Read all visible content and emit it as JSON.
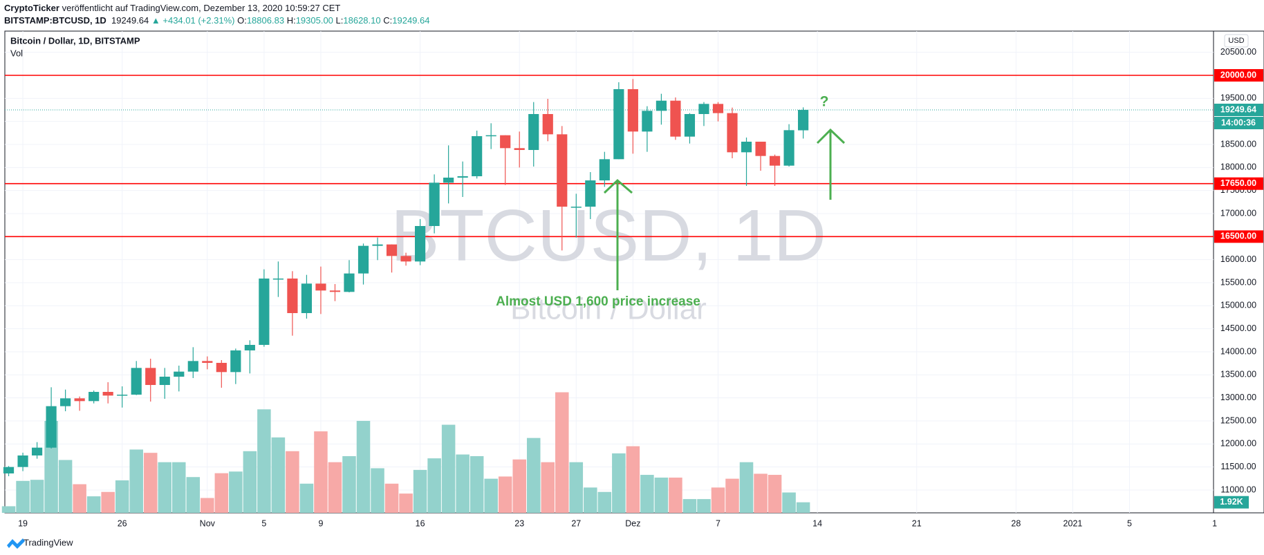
{
  "chart_data": {
    "type": "candlestick",
    "header": {
      "author": "CryptoTicker",
      "published": "veröffentlicht auf TradingView.com, Dezember 13, 2020 10:59:27 CET",
      "symbol": "BITSTAMP:BTCUSD, 1D",
      "last": "19249.64",
      "change": "▲ +434.01 (+2.31%)",
      "ohlc": [
        {
          "label": "O:",
          "value": "18806.83"
        },
        {
          "label": "H:",
          "value": "19305.00"
        },
        {
          "label": "L:",
          "value": "18628.10"
        },
        {
          "label": "C:",
          "value": "19249.64"
        }
      ]
    },
    "title": "Bitcoin / Dollar, 1D, BITSTAMP",
    "volume_title": "Vol",
    "watermark": "BTCUSD, 1D",
    "watermark_subtitle": "Bitcoin / Dollar",
    "annotation": "Almost USD 1,600 price increase",
    "annotation2": "?",
    "currency": "USD",
    "brand": "TradingView",
    "x": [
      0,
      1,
      2,
      3,
      4,
      5,
      6,
      7,
      8,
      9,
      10,
      11,
      12,
      13,
      14,
      15,
      16,
      17,
      18,
      19,
      20,
      21,
      22,
      23,
      24,
      25,
      26,
      27,
      28,
      29,
      30,
      31,
      32,
      33,
      34,
      35,
      36,
      37,
      38,
      39,
      40,
      41,
      42,
      43,
      44,
      45,
      46,
      47,
      48,
      49,
      50,
      51,
      52,
      53,
      54,
      55,
      56
    ],
    "open": [
      11360,
      11500,
      11750,
      11920,
      12820,
      12990,
      12930,
      13130,
      13050,
      13070,
      13650,
      13280,
      13460,
      13570,
      13800,
      13760,
      13560,
      14030,
      14150,
      15590,
      15590,
      14840,
      15480,
      15330,
      15300,
      15700,
      16300,
      16330,
      16080,
      15960,
      16730,
      17670,
      17780,
      17810,
      18680,
      18700,
      18420,
      18380,
      19160,
      18720,
      17150,
      17150,
      17720,
      18180,
      19700,
      18780,
      19230,
      19450,
      18670,
      19160,
      19380,
      19180,
      18330,
      18560,
      18250,
      18040,
      18806.83
    ],
    "high": [
      11520,
      11810,
      12040,
      13230,
      13180,
      13030,
      13160,
      13340,
      13250,
      13800,
      13850,
      13650,
      13700,
      14100,
      13900,
      13820,
      14070,
      14250,
      15790,
      15960,
      15750,
      15670,
      15850,
      15470,
      15990,
      16350,
      16480,
      16330,
      16150,
      16880,
      17850,
      18480,
      18130,
      18800,
      18960,
      18700,
      18780,
      19420,
      19490,
      18900,
      17430,
      17900,
      18340,
      19850,
      19920,
      19330,
      19600,
      19520,
      19180,
      19420,
      19420,
      19300,
      18650,
      18560,
      18280,
      18940,
      19305
    ],
    "low": [
      11300,
      11410,
      11680,
      11900,
      12710,
      12720,
      12880,
      12880,
      12790,
      13060,
      12920,
      12980,
      13140,
      13430,
      13620,
      13220,
      13300,
      13530,
      14110,
      15190,
      14350,
      14720,
      14820,
      15100,
      15290,
      15460,
      15990,
      15720,
      15870,
      15880,
      16570,
      17220,
      17360,
      17760,
      18400,
      17620,
      18000,
      18020,
      18570,
      16200,
      16480,
      16880,
      17580,
      18180,
      18300,
      18340,
      18930,
      18600,
      18520,
      18900,
      19000,
      18200,
      17600,
      17930,
      17600,
      18020,
      18628.1
    ],
    "close": [
      11500,
      11750,
      11920,
      12820,
      12990,
      12930,
      13130,
      13050,
      13070,
      13650,
      13280,
      13460,
      13570,
      13800,
      13760,
      13560,
      14030,
      14150,
      15590,
      15590,
      14840,
      15480,
      15330,
      15300,
      15700,
      16300,
      16330,
      16080,
      15960,
      16730,
      17670,
      17780,
      17810,
      18680,
      18700,
      18420,
      18380,
      19160,
      18720,
      17150,
      17150,
      17720,
      18180,
      19700,
      18780,
      19230,
      19450,
      18670,
      19160,
      19380,
      19180,
      18330,
      18560,
      18250,
      18040,
      18810,
      19249.64
    ],
    "volume": [
      1.2,
      5.8,
      6.0,
      16.7,
      9.6,
      5.2,
      3.0,
      3.8,
      5.9,
      11.5,
      10.9,
      9.2,
      9.2,
      6.5,
      2.7,
      7.2,
      7.5,
      11.2,
      18.8,
      13.7,
      11.2,
      5.3,
      14.8,
      9.2,
      10.3,
      16.7,
      8.1,
      5.3,
      3.5,
      7.8,
      9.9,
      16.0,
      10.6,
      10.3,
      6.2,
      6.6,
      9.7,
      13.6,
      9.2,
      21.9,
      9.2,
      4.6,
      3.8,
      10.8,
      12.1,
      6.9,
      6.4,
      6.4,
      2.5,
      2.5,
      4.6,
      6.2,
      9.2,
      7.1,
      6.9,
      3.7,
      1.92
    ],
    "volume_value_label": "1.92K",
    "volume_ylim": [
      0,
      87.5
    ],
    "up_color": "#26a69a",
    "down_color": "#ef5350",
    "up_volume_color": "#93d2cc",
    "down_volume_color": "#f7a9a7",
    "xlim": [
      -0.27,
      84.92
    ],
    "xticks": [
      {
        "value": 1,
        "label": "19"
      },
      {
        "value": 8,
        "label": "26"
      },
      {
        "value": 14,
        "label": "Nov"
      },
      {
        "value": 18,
        "label": "5"
      },
      {
        "value": 22,
        "label": "9"
      },
      {
        "value": 29,
        "label": "16"
      },
      {
        "value": 36,
        "label": "23"
      },
      {
        "value": 40,
        "label": "27"
      },
      {
        "value": 44,
        "label": "Dez"
      },
      {
        "value": 50,
        "label": "7"
      },
      {
        "value": 57,
        "label": "14"
      },
      {
        "value": 64,
        "label": "21"
      },
      {
        "value": 71,
        "label": "28"
      },
      {
        "value": 75,
        "label": "2021"
      },
      {
        "value": 79,
        "label": "5"
      },
      {
        "value": 85,
        "label": "1"
      }
    ],
    "ylim": [
      10505,
      20960
    ],
    "yticks": [
      {
        "value": 11000,
        "label": "11000.00"
      },
      {
        "value": 11500,
        "label": "11500.00"
      },
      {
        "value": 12000,
        "label": "12000.00"
      },
      {
        "value": 12500,
        "label": "12500.00"
      },
      {
        "value": 13000,
        "label": "13000.00"
      },
      {
        "value": 13500,
        "label": "13500.00"
      },
      {
        "value": 14000,
        "label": "14000.00"
      },
      {
        "value": 14500,
        "label": "14500.00"
      },
      {
        "value": 15000,
        "label": "15000.00"
      },
      {
        "value": 15500,
        "label": "15500.00"
      },
      {
        "value": 16000,
        "label": "16000.00"
      },
      {
        "value": 16500,
        "label": "16500.00"
      },
      {
        "value": 17000,
        "label": "17000.00"
      },
      {
        "value": 17500,
        "label": "17500.00"
      },
      {
        "value": 18000,
        "label": "18000.00"
      },
      {
        "value": 18500,
        "label": "18500.00"
      },
      {
        "value": 19000,
        "label": "19000.00"
      },
      {
        "value": 19500,
        "label": "19500.00"
      },
      {
        "value": 20000,
        "label": "20000.00"
      },
      {
        "value": 20500,
        "label": "20500.00"
      }
    ],
    "grid": true,
    "hlines": [
      {
        "value": 20000,
        "label": "20000.00",
        "color": "#ff0000"
      },
      {
        "value": 17650,
        "label": "17650.00",
        "color": "#ff0000"
      },
      {
        "value": 16500,
        "label": "16500.00",
        "color": "#ff0000"
      }
    ],
    "last_price": 19249.64,
    "countdown": "14:00:36"
  }
}
